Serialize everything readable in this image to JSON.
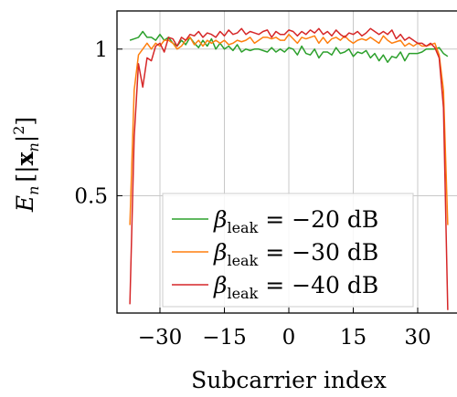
{
  "chart_data": {
    "type": "line",
    "xlabel": "Subcarrier index",
    "ylabel": {
      "main": "E",
      "sub": "n",
      "bracket_open": "[|",
      "bold": "x",
      "bold_sub": "n",
      "bracket_close": "|",
      "sup": "2",
      "end": "]"
    },
    "xlim": [
      -40,
      40
    ],
    "ylim": [
      0.1,
      1.13
    ],
    "xticks": [
      -30,
      -15,
      0,
      15,
      30
    ],
    "xtick_labels": [
      "−30",
      "−15",
      "0",
      "15",
      "30"
    ],
    "yticks": [
      0.5,
      1
    ],
    "ytick_labels": [
      "0.5",
      "1"
    ],
    "grid": true,
    "legend_position": "lower-center",
    "x": [
      -37,
      -36,
      -35,
      -34,
      -33,
      -32,
      -31,
      -30,
      -29,
      -28,
      -27,
      -26,
      -25,
      -24,
      -23,
      -22,
      -21,
      -20,
      -19,
      -18,
      -17,
      -16,
      -15,
      -14,
      -13,
      -12,
      -11,
      -10,
      -9,
      -8,
      -7,
      -6,
      -5,
      -4,
      -3,
      -2,
      -1,
      0,
      1,
      2,
      3,
      4,
      5,
      6,
      7,
      8,
      9,
      10,
      11,
      12,
      13,
      14,
      15,
      16,
      17,
      18,
      19,
      20,
      21,
      22,
      23,
      24,
      25,
      26,
      27,
      28,
      29,
      30,
      31,
      32,
      33,
      34,
      35,
      36,
      37
    ],
    "series": [
      {
        "name_main": "β",
        "name_sub": "leak",
        "name_rest": " = −20 dB",
        "color": "#2ca02c",
        "values": [
          1.03,
          1.035,
          1.04,
          1.06,
          1.04,
          1.04,
          1.03,
          1.05,
          1.03,
          1.04,
          1.02,
          1.01,
          1.03,
          1.015,
          1.04,
          1.02,
          1.005,
          1.03,
          1.01,
          1.035,
          1.0,
          1.02,
          1.0,
          1.01,
          0.995,
          1.015,
          0.99,
          1.0,
          0.995,
          1.0,
          1.0,
          0.995,
          0.99,
          1.005,
          0.99,
          1.0,
          0.99,
          1.005,
          1.0,
          0.98,
          1.01,
          0.985,
          0.98,
          1.0,
          0.97,
          0.99,
          0.99,
          0.98,
          1.005,
          0.985,
          0.99,
          1.0,
          0.975,
          0.99,
          0.985,
          0.995,
          0.97,
          0.985,
          0.96,
          0.98,
          0.955,
          0.975,
          0.97,
          0.99,
          0.96,
          0.985,
          0.985,
          0.985,
          0.99,
          1.0,
          1.0,
          1.0,
          1.005,
          0.985,
          0.975
        ]
      },
      {
        "name_main": "β",
        "name_sub": "leak",
        "name_rest": " = −30 dB",
        "color": "#ff7f0e",
        "values": [
          0.4,
          0.86,
          0.98,
          1.0,
          1.02,
          1.0,
          1.02,
          1.01,
          1.03,
          1.03,
          1.02,
          1.0,
          1.01,
          1.03,
          1.04,
          1.015,
          1.03,
          1.01,
          1.03,
          1.02,
          1.03,
          1.02,
          1.03,
          1.015,
          1.02,
          1.03,
          1.025,
          1.03,
          1.04,
          1.02,
          1.03,
          1.04,
          1.04,
          1.035,
          1.04,
          1.03,
          1.03,
          1.05,
          1.035,
          1.02,
          1.04,
          1.035,
          1.04,
          1.045,
          1.02,
          1.04,
          1.02,
          1.035,
          1.04,
          1.03,
          1.045,
          1.03,
          1.02,
          1.03,
          1.035,
          1.03,
          1.04,
          1.03,
          1.02,
          1.045,
          1.03,
          1.02,
          1.025,
          1.03,
          1.01,
          1.02,
          1.01,
          1.02,
          1.01,
          1.01,
          1.015,
          1.02,
          0.98,
          0.86,
          0.4
        ]
      },
      {
        "name_main": "β",
        "name_sub": "leak",
        "name_rest": " = −40 dB",
        "color": "#d62728",
        "values": [
          0.13,
          0.7,
          0.95,
          0.87,
          0.97,
          0.96,
          1.01,
          1.02,
          0.99,
          1.04,
          1.035,
          1.01,
          1.04,
          1.03,
          1.05,
          1.045,
          1.06,
          1.04,
          1.055,
          1.05,
          1.04,
          1.06,
          1.045,
          1.065,
          1.05,
          1.055,
          1.07,
          1.05,
          1.06,
          1.055,
          1.05,
          1.06,
          1.065,
          1.04,
          1.06,
          1.05,
          1.05,
          1.065,
          1.06,
          1.045,
          1.06,
          1.05,
          1.065,
          1.055,
          1.07,
          1.05,
          1.06,
          1.045,
          1.065,
          1.05,
          1.04,
          1.055,
          1.05,
          1.06,
          1.045,
          1.055,
          1.07,
          1.06,
          1.05,
          1.06,
          1.05,
          1.065,
          1.035,
          1.05,
          1.03,
          1.04,
          1.03,
          1.02,
          1.02,
          1.01,
          1.02,
          1.005,
          0.97,
          0.8,
          0.11
        ]
      }
    ]
  }
}
